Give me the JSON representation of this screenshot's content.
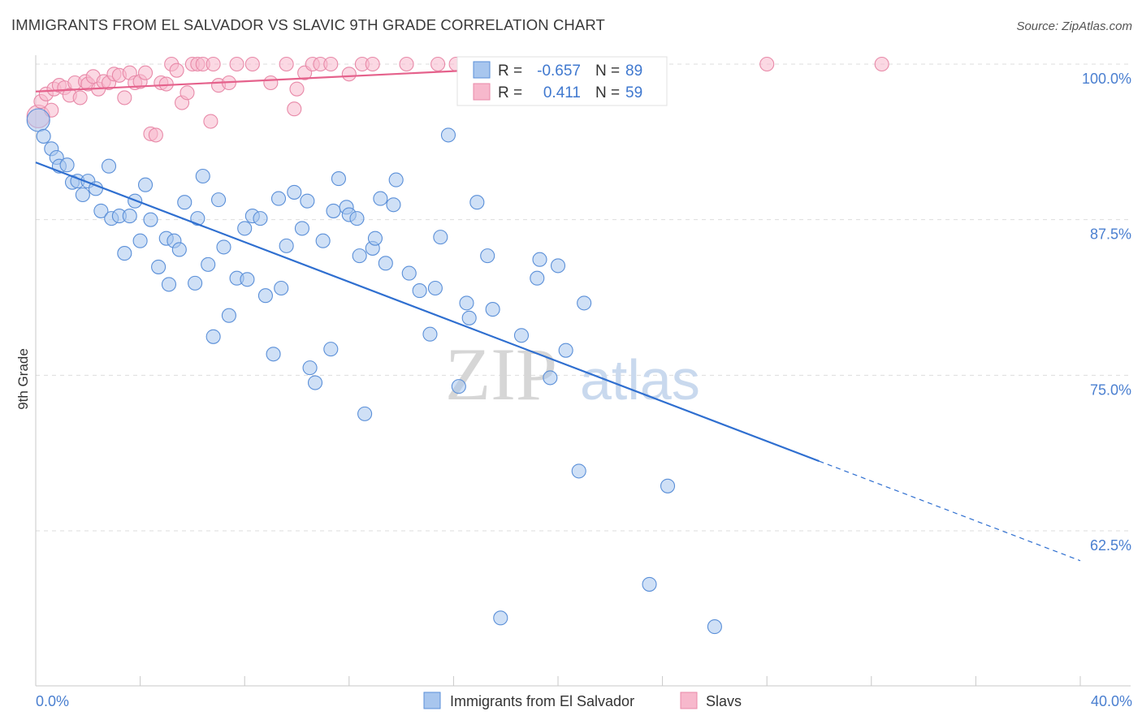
{
  "header": {
    "title": "IMMIGRANTS FROM EL SALVADOR VS SLAVIC 9TH GRADE CORRELATION CHART",
    "source": "Source: ZipAtlas.com"
  },
  "watermark": {
    "part1": "ZIP",
    "part2": "atlas"
  },
  "colors": {
    "blue_fill": "#a8c6ee",
    "blue_stroke": "#5a8fd8",
    "blue_line": "#2f6fd0",
    "pink_fill": "#f7b8cc",
    "pink_stroke": "#e889a8",
    "pink_line": "#e5628c",
    "tick_text": "#4a7fd0",
    "grid": "#dddddd"
  },
  "stats_box": {
    "rows": [
      {
        "r_label": "R =",
        "r_value": "-0.657",
        "n_label": "N =",
        "n_value": "89",
        "series": "blue"
      },
      {
        "r_label": "R =",
        "r_value": "0.411",
        "n_label": "N =",
        "n_value": "59",
        "series": "pink"
      }
    ]
  },
  "chart_data": {
    "type": "scatter",
    "title": "IMMIGRANTS FROM EL SALVADOR VS SLAVIC 9TH GRADE CORRELATION CHART",
    "xlabel": "",
    "ylabel": "9th Grade",
    "xlim": [
      0,
      40
    ],
    "ylim": [
      50.5,
      100.5
    ],
    "x_tick_labels": {
      "left": "0.0%",
      "right": "40.0%"
    },
    "y_ticks": [
      {
        "value": 100,
        "label": "100.0%"
      },
      {
        "value": 87.5,
        "label": "87.5%"
      },
      {
        "value": 75,
        "label": "75.0%"
      },
      {
        "value": 62.5,
        "label": "62.5%"
      }
    ],
    "grid": true,
    "legend_position": "bottom-center",
    "series": [
      {
        "name": "Immigrants from El Salvador",
        "color": "#5a8fd8",
        "trend": {
          "x0": 0,
          "y0": 92.1,
          "x1": 30,
          "y1": 68.1,
          "dash_to_x": 40,
          "dash_to_y": 60.1
        },
        "points": [
          [
            0.1,
            95.5
          ],
          [
            0.3,
            94.2
          ],
          [
            0.6,
            93.2
          ],
          [
            0.8,
            92.5
          ],
          [
            0.9,
            91.8
          ],
          [
            1.2,
            91.9
          ],
          [
            1.4,
            90.5
          ],
          [
            1.6,
            90.6
          ],
          [
            1.8,
            89.5
          ],
          [
            2.0,
            90.6
          ],
          [
            2.3,
            90.0
          ],
          [
            2.5,
            88.2
          ],
          [
            2.8,
            91.8
          ],
          [
            2.9,
            87.6
          ],
          [
            3.2,
            87.8
          ],
          [
            3.4,
            84.8
          ],
          [
            3.6,
            87.8
          ],
          [
            3.8,
            89.0
          ],
          [
            4.0,
            85.8
          ],
          [
            4.2,
            90.3
          ],
          [
            4.4,
            87.5
          ],
          [
            4.7,
            83.7
          ],
          [
            5.0,
            86.0
          ],
          [
            5.1,
            82.3
          ],
          [
            5.3,
            85.8
          ],
          [
            5.5,
            85.1
          ],
          [
            5.7,
            88.9
          ],
          [
            6.1,
            82.4
          ],
          [
            6.2,
            87.6
          ],
          [
            6.4,
            91.0
          ],
          [
            6.6,
            83.9
          ],
          [
            6.8,
            78.1
          ],
          [
            7.0,
            89.1
          ],
          [
            7.2,
            85.3
          ],
          [
            7.4,
            79.8
          ],
          [
            7.7,
            82.8
          ],
          [
            8.0,
            86.8
          ],
          [
            8.1,
            82.7
          ],
          [
            8.3,
            87.8
          ],
          [
            8.6,
            87.6
          ],
          [
            8.8,
            81.4
          ],
          [
            9.1,
            76.7
          ],
          [
            9.3,
            89.2
          ],
          [
            9.4,
            82.0
          ],
          [
            9.6,
            85.4
          ],
          [
            9.9,
            89.7
          ],
          [
            10.2,
            86.8
          ],
          [
            10.4,
            89.0
          ],
          [
            10.5,
            75.6
          ],
          [
            10.7,
            74.4
          ],
          [
            11.0,
            85.8
          ],
          [
            11.3,
            77.1
          ],
          [
            11.4,
            88.2
          ],
          [
            11.6,
            90.8
          ],
          [
            11.9,
            88.5
          ],
          [
            12.0,
            87.9
          ],
          [
            12.3,
            87.6
          ],
          [
            12.4,
            84.6
          ],
          [
            12.6,
            71.9
          ],
          [
            12.9,
            85.2
          ],
          [
            13.0,
            86.0
          ],
          [
            13.2,
            89.2
          ],
          [
            13.4,
            84.0
          ],
          [
            13.7,
            88.7
          ],
          [
            13.8,
            90.7
          ],
          [
            14.3,
            83.2
          ],
          [
            14.7,
            81.8
          ],
          [
            15.1,
            78.3
          ],
          [
            15.3,
            82.0
          ],
          [
            15.5,
            86.1
          ],
          [
            15.8,
            94.3
          ],
          [
            16.2,
            74.1
          ],
          [
            16.5,
            80.8
          ],
          [
            16.6,
            79.6
          ],
          [
            16.9,
            88.9
          ],
          [
            17.3,
            84.6
          ],
          [
            17.5,
            80.3
          ],
          [
            17.8,
            55.5
          ],
          [
            18.6,
            78.2
          ],
          [
            19.2,
            82.8
          ],
          [
            19.3,
            84.3
          ],
          [
            19.7,
            74.8
          ],
          [
            20.0,
            83.8
          ],
          [
            20.3,
            77.0
          ],
          [
            20.8,
            67.3
          ],
          [
            21.0,
            80.8
          ],
          [
            23.5,
            58.2
          ],
          [
            24.2,
            66.1
          ],
          [
            26.0,
            54.8
          ]
        ]
      },
      {
        "name": "Slavs",
        "color": "#e889a8",
        "trend": {
          "x0": 0,
          "y0": 97.8,
          "x1": 21.5,
          "y1": 100.0
        },
        "points": [
          [
            0.1,
            95.8
          ],
          [
            0.2,
            97.0
          ],
          [
            0.4,
            97.6
          ],
          [
            0.6,
            96.3
          ],
          [
            0.7,
            98.0
          ],
          [
            0.9,
            98.3
          ],
          [
            1.1,
            98.1
          ],
          [
            1.3,
            97.5
          ],
          [
            1.5,
            98.5
          ],
          [
            1.7,
            97.3
          ],
          [
            1.9,
            98.6
          ],
          [
            2.0,
            98.4
          ],
          [
            2.2,
            99.0
          ],
          [
            2.4,
            98.0
          ],
          [
            2.6,
            98.6
          ],
          [
            2.8,
            98.5
          ],
          [
            3.0,
            99.2
          ],
          [
            3.2,
            99.1
          ],
          [
            3.4,
            97.3
          ],
          [
            3.6,
            99.3
          ],
          [
            3.8,
            98.5
          ],
          [
            4.0,
            98.6
          ],
          [
            4.2,
            99.3
          ],
          [
            4.4,
            94.4
          ],
          [
            4.6,
            94.3
          ],
          [
            4.8,
            98.5
          ],
          [
            5.0,
            98.4
          ],
          [
            5.2,
            100.0
          ],
          [
            5.4,
            99.5
          ],
          [
            5.6,
            96.9
          ],
          [
            5.8,
            97.7
          ],
          [
            6.0,
            100.0
          ],
          [
            6.2,
            100.0
          ],
          [
            6.4,
            100.0
          ],
          [
            6.7,
            95.4
          ],
          [
            6.8,
            100.0
          ],
          [
            7.0,
            98.3
          ],
          [
            7.4,
            98.5
          ],
          [
            7.7,
            100.0
          ],
          [
            8.3,
            100.0
          ],
          [
            9.0,
            98.5
          ],
          [
            9.6,
            100.0
          ],
          [
            9.9,
            96.4
          ],
          [
            10.0,
            98.0
          ],
          [
            10.3,
            99.3
          ],
          [
            10.6,
            100.0
          ],
          [
            10.9,
            100.0
          ],
          [
            11.3,
            100.0
          ],
          [
            12.0,
            99.2
          ],
          [
            12.5,
            100.0
          ],
          [
            12.9,
            100.0
          ],
          [
            14.2,
            100.0
          ],
          [
            15.4,
            100.0
          ],
          [
            16.1,
            100.0
          ],
          [
            17.2,
            100.0
          ],
          [
            18.4,
            100.0
          ],
          [
            20.0,
            100.0
          ],
          [
            28.0,
            100.0
          ],
          [
            32.4,
            100.0
          ]
        ]
      }
    ]
  }
}
